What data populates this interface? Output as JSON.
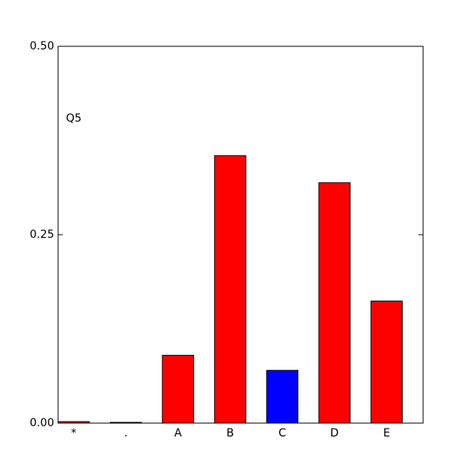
{
  "chart_data": {
    "type": "bar",
    "annotation": "Q5",
    "categories": [
      "*",
      ".",
      "A",
      "B",
      "C",
      "D",
      "E"
    ],
    "values": [
      0.002,
      0.001,
      0.09,
      0.355,
      0.07,
      0.319,
      0.162
    ],
    "colors": [
      "#ff0000",
      "#ff0000",
      "#ff0000",
      "#ff0000",
      "#0000ff",
      "#ff0000",
      "#ff0000"
    ],
    "ylim": [
      0,
      0.5
    ],
    "yticks": [
      {
        "value": 0,
        "label": "0.00"
      },
      {
        "value": 0.25,
        "label": "0.25"
      },
      {
        "value": 0.5,
        "label": "0.50"
      }
    ],
    "grid": false
  }
}
